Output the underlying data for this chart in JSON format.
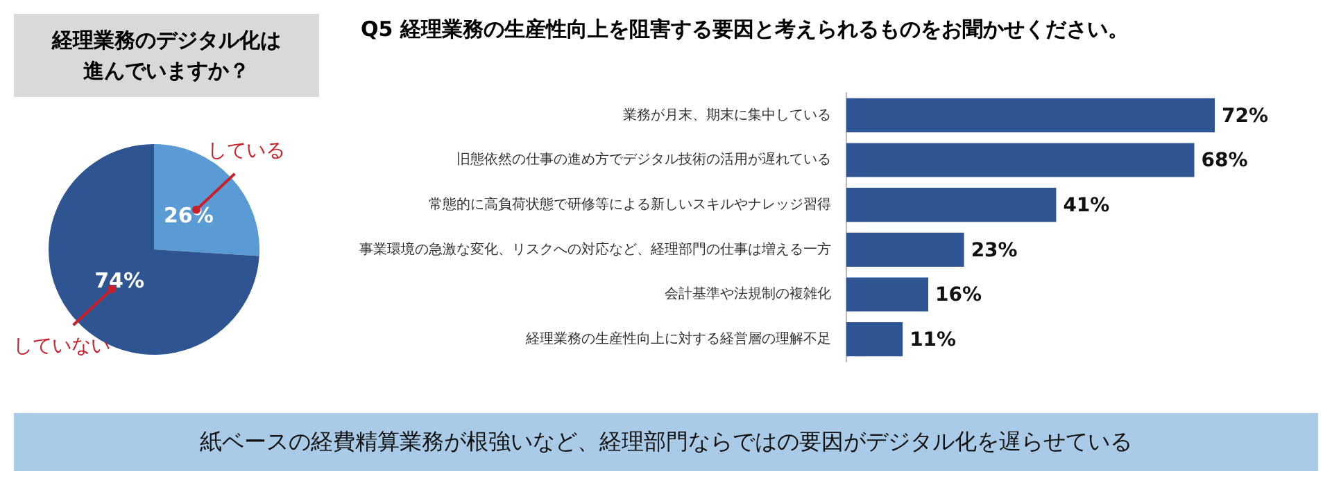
{
  "chart_data": [
    {
      "type": "pie",
      "title": "経理業務のデジタル化は進んでいますか？",
      "categories": [
        "している",
        "していない"
      ],
      "values": [
        26,
        74
      ],
      "colors": [
        "#5b9bd5",
        "#2e5591"
      ],
      "value_labels": [
        "26%",
        "74%"
      ]
    },
    {
      "type": "bar",
      "orientation": "horizontal",
      "title": "Q5 経理業務の生産性向上を阻害する要因と考えられるものをお聞かせください。",
      "categories": [
        "業務が月末、期末に集中している",
        "旧態依然の仕事の進め方でデジタル技術の活用が遅れている",
        "常態的に高負荷状態で研修等による新しいスキルやナレッジ習得",
        "事業環境の急激な変化、リスクへの対応など、経理部門の仕事は増える一方",
        "会計基準や法規制の複雑化",
        "経理業務の生産性向上に対する経営層の理解不足"
      ],
      "values": [
        72,
        68,
        41,
        23,
        16,
        11
      ],
      "color": "#2e5591",
      "value_labels": [
        "72%",
        "68%",
        "41%",
        "23%",
        "16%",
        "11%"
      ],
      "tick_labels": "y",
      "annotations": [
        "紙ベースの経費精算業務が根強いなど、経理部門ならではの要因がデジタル化を遅らせている"
      ]
    }
  ]
}
